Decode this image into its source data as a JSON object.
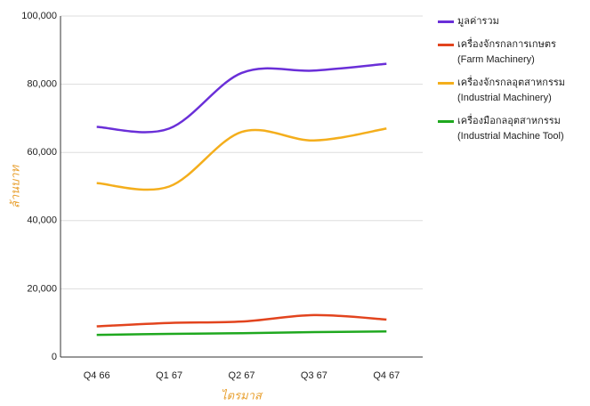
{
  "chart_data": {
    "type": "line",
    "xlabel": "ไตรมาส",
    "ylabel": "ล้านบาท",
    "categories": [
      "Q4 66",
      "Q1 67",
      "Q2 67",
      "Q3 67",
      "Q4 67"
    ],
    "series": [
      {
        "name": "มูลค่ารวม",
        "color": "#6a2fd8",
        "values": [
          67500,
          67000,
          83300,
          84000,
          86000
        ]
      },
      {
        "name": "เครื่องจักรกลการเกษตร (Farm Machinery)",
        "color": "#e2441e",
        "values": [
          9000,
          10000,
          10400,
          12300,
          11000
        ]
      },
      {
        "name": "เครื่องจักรกลอุตสาหกรรม (Industrial Machinery)",
        "color": "#f4ae1c",
        "values": [
          51000,
          50000,
          66000,
          63500,
          67000
        ]
      },
      {
        "name": "เครื่องมือกลอุตสาหกรรม (Industrial Machine Tool)",
        "color": "#1fa81f",
        "values": [
          6500,
          6800,
          7000,
          7300,
          7500
        ]
      }
    ],
    "ylim": [
      0,
      100000
    ],
    "yticks": [
      0,
      {
        "value": 20000,
        "label": "20,000"
      },
      {
        "value": 40000,
        "label": "40,000"
      },
      {
        "value": 60000,
        "label": "60,000"
      },
      {
        "value": 80000,
        "label": "80,000"
      },
      {
        "value": 100000,
        "label": "100,000"
      }
    ],
    "grid": true,
    "legend": "right"
  }
}
